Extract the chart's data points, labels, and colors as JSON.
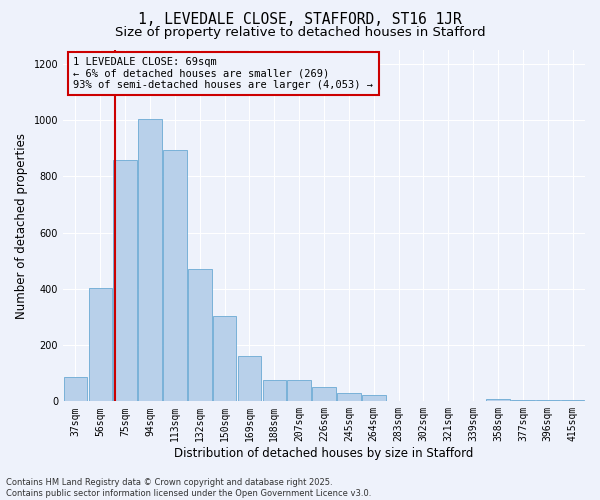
{
  "title_line1": "1, LEVEDALE CLOSE, STAFFORD, ST16 1JR",
  "title_line2": "Size of property relative to detached houses in Stafford",
  "xlabel": "Distribution of detached houses by size in Stafford",
  "ylabel": "Number of detached properties",
  "categories": [
    "37sqm",
    "56sqm",
    "75sqm",
    "94sqm",
    "113sqm",
    "132sqm",
    "150sqm",
    "169sqm",
    "188sqm",
    "207sqm",
    "226sqm",
    "245sqm",
    "264sqm",
    "283sqm",
    "302sqm",
    "321sqm",
    "339sqm",
    "358sqm",
    "377sqm",
    "396sqm",
    "415sqm"
  ],
  "values": [
    85,
    405,
    860,
    1005,
    895,
    470,
    305,
    160,
    75,
    75,
    50,
    30,
    22,
    0,
    0,
    0,
    0,
    10,
    3,
    3,
    5
  ],
  "bar_color": "#b8d0ea",
  "bar_edge_color": "#6aaad4",
  "vline_color": "#cc0000",
  "vline_x": 1.575,
  "annotation_box_text": "1 LEVEDALE CLOSE: 69sqm\n← 6% of detached houses are smaller (269)\n93% of semi-detached houses are larger (4,053) →",
  "box_edge_color": "#cc0000",
  "ylim": [
    0,
    1250
  ],
  "yticks": [
    0,
    200,
    400,
    600,
    800,
    1000,
    1200
  ],
  "background_color": "#eef2fb",
  "grid_color": "#ffffff",
  "footer_text": "Contains HM Land Registry data © Crown copyright and database right 2025.\nContains public sector information licensed under the Open Government Licence v3.0.",
  "title_fontsize": 10.5,
  "subtitle_fontsize": 9.5,
  "axis_label_fontsize": 8.5,
  "tick_fontsize": 7,
  "annotation_fontsize": 7.5,
  "footer_fontsize": 6
}
